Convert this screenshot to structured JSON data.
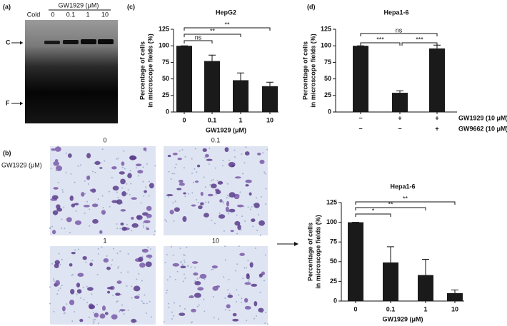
{
  "panel_a": {
    "label": "(a)",
    "treatment": "GW1929 (μM)",
    "lanes": [
      "Cold",
      "0",
      "0.1",
      "1",
      "10"
    ],
    "complex": "C",
    "free": "F"
  },
  "panel_b": {
    "label": "(b)",
    "treatment": "GW1929 (μM)",
    "fields": [
      "0",
      "0.1",
      "1",
      "10"
    ]
  },
  "chart_labels": [
    "(c)",
    "(d)",
    null
  ],
  "chart_data": [
    {
      "type": "bar",
      "title": "HepG2",
      "categories": [
        "0",
        "0.1",
        "1",
        "10"
      ],
      "values": [
        100,
        77,
        48,
        39
      ],
      "errors": [
        0,
        9,
        11,
        6
      ],
      "color": "#1a1a1a",
      "ylim": [
        0,
        125
      ],
      "yticks": [
        0,
        25,
        50,
        75,
        100,
        125
      ],
      "ylabel": [
        "Percentage of cells",
        "in microscope fields (%)"
      ],
      "xlabel": "GW1929 (μM)",
      "significance": [
        {
          "label": "ns",
          "from": 0,
          "to": 1
        },
        {
          "label": "**",
          "from": 0,
          "to": 2
        },
        {
          "label": "**",
          "from": 0,
          "to": 3
        }
      ]
    },
    {
      "type": "bar",
      "title": "Hepa1-6",
      "categories": [
        null,
        null,
        null
      ],
      "values": [
        100,
        29,
        96
      ],
      "errors": [
        0,
        3,
        5
      ],
      "color": "#1a1a1a",
      "ylim": [
        0,
        125
      ],
      "yticks": [
        0,
        25,
        50,
        75,
        100,
        125
      ],
      "ylabel": [
        "Percentage of cells",
        "in microscope fields (%)"
      ],
      "conditions": [
        {
          "name": "GW1929 (10 μM)",
          "signs": [
            "−",
            "+",
            "+"
          ]
        },
        {
          "name": "GW9662 (10 μM)",
          "signs": [
            "−",
            "−",
            "+"
          ]
        }
      ],
      "significance": [
        {
          "label": "ns",
          "from": 0,
          "to": 2
        },
        {
          "label": "***",
          "from": 0,
          "to": 1
        },
        {
          "label": "***",
          "from": 1,
          "to": 2
        }
      ]
    },
    {
      "type": "bar",
      "title": "Hepa1-6",
      "categories": [
        "0",
        "0.1",
        "1",
        "10"
      ],
      "values": [
        100,
        49,
        33,
        10
      ],
      "errors": [
        0,
        20,
        20,
        4
      ],
      "color": "#1a1a1a",
      "ylim": [
        0,
        125
      ],
      "yticks": [
        0,
        25,
        50,
        75,
        100,
        125
      ],
      "ylabel": [
        "Percentage of cells",
        "in microscope fields (%)"
      ],
      "xlabel": "GW1929 (μM)",
      "significance": [
        {
          "label": "*",
          "from": 0,
          "to": 1
        },
        {
          "label": "**",
          "from": 0,
          "to": 2
        },
        {
          "label": "**",
          "from": 0,
          "to": 3
        }
      ]
    }
  ]
}
